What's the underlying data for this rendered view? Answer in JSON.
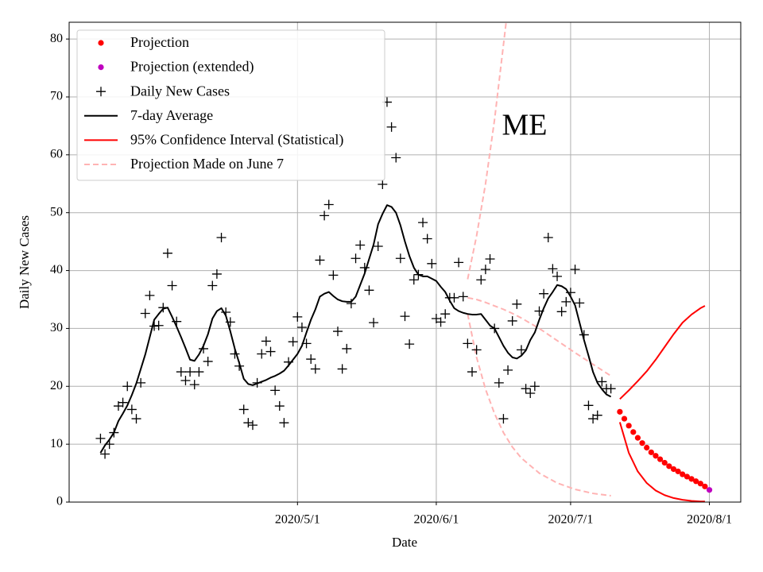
{
  "chart_data": {
    "type": "line",
    "xlabel": "Date",
    "ylabel": "Daily New Cases",
    "annotation": "ME",
    "xlim": [
      "2020-03-11",
      "2020-08-08"
    ],
    "ylim": [
      0,
      82.9
    ],
    "xticks": [
      {
        "value": "2020-05-01",
        "label": "2020/5/1"
      },
      {
        "value": "2020-06-01",
        "label": "2020/6/1"
      },
      {
        "value": "2020-07-01",
        "label": "2020/7/1"
      },
      {
        "value": "2020-08-01",
        "label": "2020/8/1"
      }
    ],
    "yticks": [
      0,
      10,
      20,
      30,
      40,
      50,
      60,
      70,
      80
    ],
    "grid": true,
    "legend": "upper left",
    "series": [
      {
        "name": "Projection",
        "color": "#ff0000",
        "marker": "o",
        "x": [
          "2020-07-12",
          "2020-07-13",
          "2020-07-14",
          "2020-07-15",
          "2020-07-16",
          "2020-07-17",
          "2020-07-18",
          "2020-07-19",
          "2020-07-20",
          "2020-07-21",
          "2020-07-22",
          "2020-07-23",
          "2020-07-24",
          "2020-07-25",
          "2020-07-26",
          "2020-07-27",
          "2020-07-28",
          "2020-07-29",
          "2020-07-30",
          "2020-07-31"
        ],
        "values": [
          15.6,
          14.4,
          13.2,
          12.1,
          11.1,
          10.2,
          9.4,
          8.6,
          8.0,
          7.4,
          6.8,
          6.2,
          5.7,
          5.3,
          4.8,
          4.4,
          4.0,
          3.6,
          3.2,
          2.7
        ]
      },
      {
        "name": "Projection (extended)",
        "color": "#bf00bf",
        "marker": "o",
        "x": [
          "2020-08-01"
        ],
        "values": [
          2.1
        ]
      },
      {
        "name": "Daily New Cases",
        "color": "#000000",
        "marker": "+",
        "x": [
          "2020-03-18",
          "2020-03-19",
          "2020-03-20",
          "2020-03-21",
          "2020-03-22",
          "2020-03-23",
          "2020-03-24",
          "2020-03-25",
          "2020-03-26",
          "2020-03-27",
          "2020-03-28",
          "2020-03-29",
          "2020-03-30",
          "2020-03-31",
          "2020-04-01",
          "2020-04-02",
          "2020-04-03",
          "2020-04-04",
          "2020-04-05",
          "2020-04-06",
          "2020-04-07",
          "2020-04-08",
          "2020-04-09",
          "2020-04-10",
          "2020-04-11",
          "2020-04-12",
          "2020-04-13",
          "2020-04-14",
          "2020-04-15",
          "2020-04-16",
          "2020-04-17",
          "2020-04-18",
          "2020-04-19",
          "2020-04-20",
          "2020-04-21",
          "2020-04-22",
          "2020-04-23",
          "2020-04-24",
          "2020-04-25",
          "2020-04-26",
          "2020-04-27",
          "2020-04-28",
          "2020-04-29",
          "2020-04-30",
          "2020-05-01",
          "2020-05-02",
          "2020-05-03",
          "2020-05-04",
          "2020-05-05",
          "2020-05-06",
          "2020-05-07",
          "2020-05-08",
          "2020-05-09",
          "2020-05-10",
          "2020-05-11",
          "2020-05-12",
          "2020-05-13",
          "2020-05-14",
          "2020-05-15",
          "2020-05-16",
          "2020-05-17",
          "2020-05-18",
          "2020-05-19",
          "2020-05-20",
          "2020-05-21",
          "2020-05-22",
          "2020-05-23",
          "2020-05-24",
          "2020-05-25",
          "2020-05-26",
          "2020-05-27",
          "2020-05-28",
          "2020-05-29",
          "2020-05-30",
          "2020-05-31",
          "2020-06-01",
          "2020-06-02",
          "2020-06-03",
          "2020-06-04",
          "2020-06-05",
          "2020-06-06",
          "2020-06-07",
          "2020-06-08",
          "2020-06-09",
          "2020-06-10",
          "2020-06-11",
          "2020-06-12",
          "2020-06-13",
          "2020-06-14",
          "2020-06-15",
          "2020-06-16",
          "2020-06-17",
          "2020-06-18",
          "2020-06-19",
          "2020-06-20",
          "2020-06-21",
          "2020-06-22",
          "2020-06-23",
          "2020-06-24",
          "2020-06-25",
          "2020-06-26",
          "2020-06-27",
          "2020-06-28",
          "2020-06-29",
          "2020-06-30",
          "2020-07-01",
          "2020-07-02",
          "2020-07-03",
          "2020-07-04",
          "2020-07-05",
          "2020-07-06",
          "2020-07-07",
          "2020-07-08",
          "2020-07-09",
          "2020-07-10"
        ],
        "values": [
          11,
          8.3,
          10,
          12,
          16.6,
          17.2,
          20,
          16,
          14.4,
          20.6,
          32.6,
          35.7,
          30.4,
          30.5,
          33.6,
          43,
          37.4,
          31.2,
          22.5,
          21,
          22.5,
          20.3,
          22.5,
          26.5,
          24.3,
          37.4,
          39.4,
          45.7,
          32.8,
          31.1,
          25.6,
          23.5,
          16,
          13.7,
          13.3,
          20.6,
          25.6,
          27.8,
          26,
          19.3,
          16.6,
          13.7,
          24.2,
          27.7,
          32,
          30.2,
          27.4,
          24.7,
          23,
          41.8,
          49.5,
          51.4,
          39.2,
          29.5,
          23,
          26.5,
          34.3,
          42.1,
          44.4,
          40.5,
          36.6,
          31,
          44.2,
          54.9,
          69.1,
          64.8,
          59.5,
          42.1,
          32.1,
          27.3,
          38.4,
          39.3,
          48.3,
          45.5,
          41.2,
          31.7,
          31.1,
          32.5,
          35.3,
          35.3,
          41.4,
          35.5,
          27.4,
          22.5,
          26.3,
          38.4,
          40.2,
          42,
          30,
          20.6,
          14.4,
          22.8,
          31.3,
          34.2,
          26.3,
          19.6,
          18.8,
          20,
          33,
          36,
          45.7,
          40.3,
          39,
          32.9,
          34.6,
          36.2,
          40.2,
          34.4,
          28.9,
          16.7,
          14.4,
          15,
          20.8,
          19.6,
          19.6
        ]
      },
      {
        "name": "7-day Average",
        "color": "#000000",
        "linestyle": "solid",
        "x": [
          "2020-03-18",
          "2020-03-19",
          "2020-03-20",
          "2020-03-21",
          "2020-03-22",
          "2020-03-23",
          "2020-03-24",
          "2020-03-25",
          "2020-03-26",
          "2020-03-27",
          "2020-03-28",
          "2020-03-29",
          "2020-03-30",
          "2020-03-31",
          "2020-04-01",
          "2020-04-02",
          "2020-04-03",
          "2020-04-04",
          "2020-04-05",
          "2020-04-06",
          "2020-04-07",
          "2020-04-08",
          "2020-04-09",
          "2020-04-10",
          "2020-04-11",
          "2020-04-12",
          "2020-04-13",
          "2020-04-14",
          "2020-04-15",
          "2020-04-16",
          "2020-04-17",
          "2020-04-18",
          "2020-04-19",
          "2020-04-20",
          "2020-04-21",
          "2020-04-22",
          "2020-04-23",
          "2020-04-24",
          "2020-04-25",
          "2020-04-26",
          "2020-04-27",
          "2020-04-28",
          "2020-04-29",
          "2020-04-30",
          "2020-05-01",
          "2020-05-02",
          "2020-05-03",
          "2020-05-04",
          "2020-05-05",
          "2020-05-06",
          "2020-05-07",
          "2020-05-08",
          "2020-05-09",
          "2020-05-10",
          "2020-05-11",
          "2020-05-12",
          "2020-05-13",
          "2020-05-14",
          "2020-05-15",
          "2020-05-16",
          "2020-05-17",
          "2020-05-18",
          "2020-05-19",
          "2020-05-20",
          "2020-05-21",
          "2020-05-22",
          "2020-05-23",
          "2020-05-24",
          "2020-05-25",
          "2020-05-26",
          "2020-05-27",
          "2020-05-28",
          "2020-05-29",
          "2020-05-30",
          "2020-05-31",
          "2020-06-01",
          "2020-06-02",
          "2020-06-03",
          "2020-06-04",
          "2020-06-05",
          "2020-06-06",
          "2020-06-07",
          "2020-06-08",
          "2020-06-09",
          "2020-06-10",
          "2020-06-11",
          "2020-06-12",
          "2020-06-13",
          "2020-06-14",
          "2020-06-15",
          "2020-06-16",
          "2020-06-17",
          "2020-06-18",
          "2020-06-19",
          "2020-06-20",
          "2020-06-21",
          "2020-06-22",
          "2020-06-23",
          "2020-06-24",
          "2020-06-25",
          "2020-06-26",
          "2020-06-27",
          "2020-06-28",
          "2020-06-29",
          "2020-06-30",
          "2020-07-01",
          "2020-07-02",
          "2020-07-03",
          "2020-07-04",
          "2020-07-05",
          "2020-07-06",
          "2020-07-07",
          "2020-07-08",
          "2020-07-09",
          "2020-07-10"
        ],
        "values": [
          8.5,
          9.8,
          10.8,
          12,
          14,
          15.3,
          16.7,
          18.5,
          20.5,
          23,
          25.5,
          28.5,
          31.5,
          32.5,
          33.4,
          33.6,
          32,
          30.3,
          28.5,
          26.6,
          24.6,
          24.4,
          25.5,
          27,
          29,
          31.7,
          33,
          33.5,
          32.2,
          29.5,
          26.5,
          24,
          21.3,
          20.4,
          20.2,
          20.5,
          20.8,
          21.1,
          21.5,
          21.8,
          22.2,
          22.7,
          23.6,
          24.6,
          25.6,
          27,
          29.3,
          31.5,
          33.3,
          35.5,
          36,
          36.3,
          35.6,
          35,
          34.7,
          34.6,
          34.6,
          35.5,
          37.5,
          39.5,
          42,
          44.5,
          48,
          49.8,
          51.3,
          51,
          50,
          47.8,
          45,
          42.5,
          40.5,
          39.3,
          39,
          39,
          38.6,
          38.2,
          37.2,
          36.3,
          34.8,
          33.5,
          33,
          32.7,
          32.5,
          32.4,
          32.4,
          32.5,
          31.5,
          30.5,
          30,
          28.5,
          27,
          25.8,
          25,
          24.8,
          25.3,
          26.2,
          28,
          29.3,
          31.5,
          33.5,
          35.2,
          36.3,
          37.5,
          37.3,
          36.8,
          35.5,
          34,
          31,
          28,
          25.3,
          22.5,
          20.6,
          19.5,
          18.6,
          18.2
        ]
      },
      {
        "name": "95% Confidence Interval (Statistical)",
        "color": "#ff0000",
        "linestyle": "solid",
        "x": [
          "2020-07-12",
          "2020-07-14",
          "2020-07-16",
          "2020-07-18",
          "2020-07-20",
          "2020-07-22",
          "2020-07-24",
          "2020-07-26",
          "2020-07-28",
          "2020-07-30",
          "2020-07-31"
        ],
        "upper": [
          17.8,
          19.3,
          20.9,
          22.6,
          24.6,
          26.8,
          29,
          31,
          32.4,
          33.5,
          33.9
        ],
        "lower": [
          13.8,
          8.5,
          5.3,
          3.3,
          2.0,
          1.2,
          0.7,
          0.4,
          0.2,
          0.1,
          0.1
        ]
      },
      {
        "name": "Projection Made on June 7",
        "color": "#ffb3b3",
        "linestyle": "dashed",
        "x": [
          "2020-06-08",
          "2020-06-10",
          "2020-06-12",
          "2020-06-14",
          "2020-06-16",
          "2020-06-18",
          "2020-06-20",
          "2020-06-24",
          "2020-06-28",
          "2020-07-02",
          "2020-07-06",
          "2020-07-10"
        ],
        "upper": [
          38.5,
          46,
          55,
          66,
          79,
          92,
          null,
          null,
          null,
          null,
          null,
          null
        ],
        "values": [
          35.3,
          35,
          34.5,
          33.9,
          33.3,
          32.6,
          31.8,
          30,
          27.9,
          25.8,
          23.8,
          21.8
        ],
        "lower": [
          32.5,
          25,
          19.5,
          15.3,
          12,
          9.5,
          7.6,
          5,
          3.3,
          2.2,
          1.5,
          1.1
        ]
      }
    ]
  }
}
